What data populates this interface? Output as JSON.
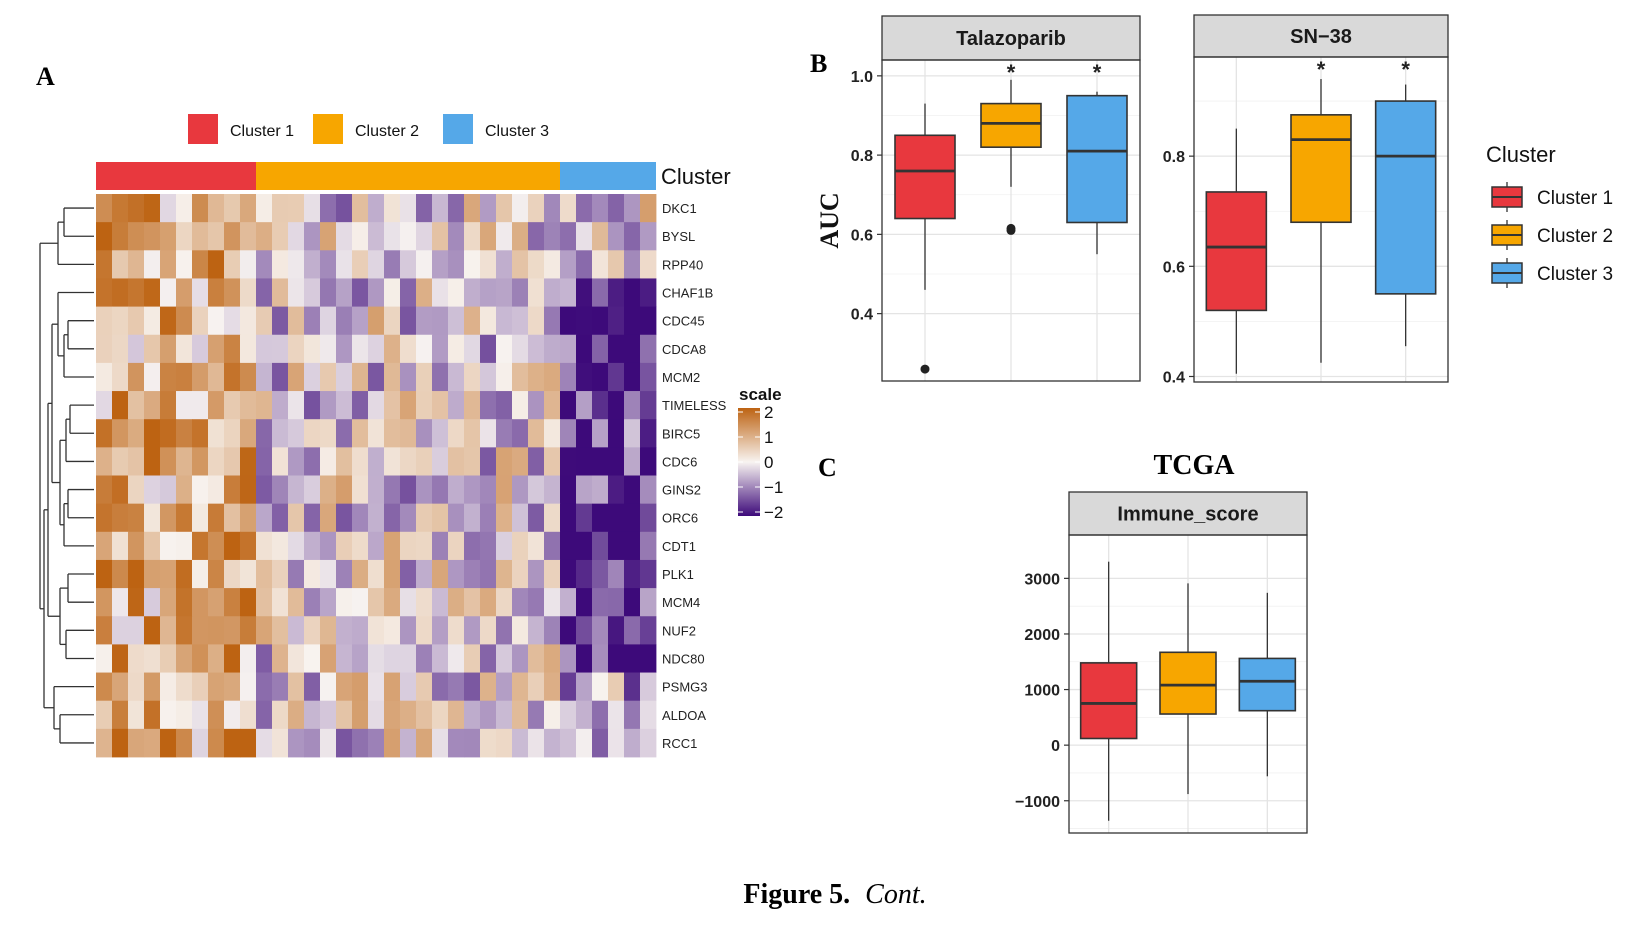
{
  "panels": {
    "A": "A",
    "B": "B",
    "C": "C"
  },
  "caption": {
    "bold": "Figure 5.",
    "italic": "Cont."
  },
  "colors": {
    "cluster1": "#e8383e",
    "cluster2": "#f7a600",
    "cluster3": "#55a8e8",
    "high": "#bd6312",
    "mid": "#f8f4f1",
    "low": "#3d0a7a"
  },
  "chart_data": [
    {
      "type": "heatmap",
      "legend": {
        "items": [
          "Cluster 1",
          "Cluster 2",
          "Cluster 3"
        ],
        "annotation_label": "Cluster"
      },
      "columns_per_cluster": [
        10,
        19,
        6
      ],
      "genes": [
        "DKC1",
        "BYSL",
        "RPP40",
        "CHAF1B",
        "CDC45",
        "CDCA8",
        "MCM2",
        "TIMELESS",
        "BIRC5",
        "CDC6",
        "GINS2",
        "ORC6",
        "CDT1",
        "PLK1",
        "MCM4",
        "NUF2",
        "NDC80",
        "PSMG3",
        "ALDOA",
        "RCC1"
      ],
      "colorbar": {
        "title": "scale",
        "ticks": [
          "2",
          "1",
          "0",
          "−1",
          "−2"
        ],
        "range": [
          -2,
          2
        ]
      }
    },
    {
      "type": "box",
      "facet": "Talazoparib",
      "ylabel": "AUC",
      "ylim": [
        0.23,
        1.04
      ],
      "yticks": [
        "0.4",
        "0.6",
        "0.8",
        "1.0"
      ],
      "groups": [
        {
          "name": "Cluster 1",
          "min": 0.46,
          "q1": 0.64,
          "median": 0.76,
          "q3": 0.85,
          "max": 0.93,
          "outliers": [
            0.26
          ],
          "signif": ""
        },
        {
          "name": "Cluster 2",
          "min": 0.72,
          "q1": 0.82,
          "median": 0.88,
          "q3": 0.93,
          "max": 0.99,
          "outliers": [
            0.61,
            0.615
          ],
          "signif": "*"
        },
        {
          "name": "Cluster 3",
          "min": 0.55,
          "q1": 0.63,
          "median": 0.81,
          "q3": 0.95,
          "max": 0.96,
          "outliers": [],
          "signif": "*"
        }
      ]
    },
    {
      "type": "box",
      "facet": "SN−38",
      "ylim": [
        0.39,
        0.98
      ],
      "yticks": [
        "0.4",
        "0.6",
        "0.8"
      ],
      "groups": [
        {
          "name": "Cluster 1",
          "min": 0.405,
          "q1": 0.52,
          "median": 0.635,
          "q3": 0.735,
          "max": 0.85,
          "outliers": [],
          "signif": ""
        },
        {
          "name": "Cluster 2",
          "min": 0.425,
          "q1": 0.68,
          "median": 0.83,
          "q3": 0.875,
          "max": 0.94,
          "outliers": [],
          "signif": "*"
        },
        {
          "name": "Cluster 3",
          "min": 0.455,
          "q1": 0.55,
          "median": 0.8,
          "q3": 0.9,
          "max": 0.93,
          "outliers": [],
          "signif": "*"
        }
      ]
    },
    {
      "type": "box",
      "title": "TCGA",
      "facet": "Immune_score",
      "ylim": [
        -1580,
        3780
      ],
      "yticks": [
        "3000",
        "2000",
        "1000",
        "0",
        "−1000"
      ],
      "groups": [
        {
          "name": "Cluster 1",
          "min": -1360,
          "q1": 120,
          "median": 750,
          "q3": 1480,
          "max": 3300,
          "outliers": [],
          "signif": ""
        },
        {
          "name": "Cluster 2",
          "min": -880,
          "q1": 560,
          "median": 1080,
          "q3": 1670,
          "max": 2910,
          "outliers": [],
          "signif": ""
        },
        {
          "name": "Cluster 3",
          "min": -560,
          "q1": 620,
          "median": 1150,
          "q3": 1560,
          "max": 2740,
          "outliers": [],
          "signif": ""
        }
      ]
    }
  ],
  "cluster_legend": {
    "title": "Cluster",
    "items": [
      "Cluster 1",
      "Cluster 2",
      "Cluster 3"
    ]
  }
}
